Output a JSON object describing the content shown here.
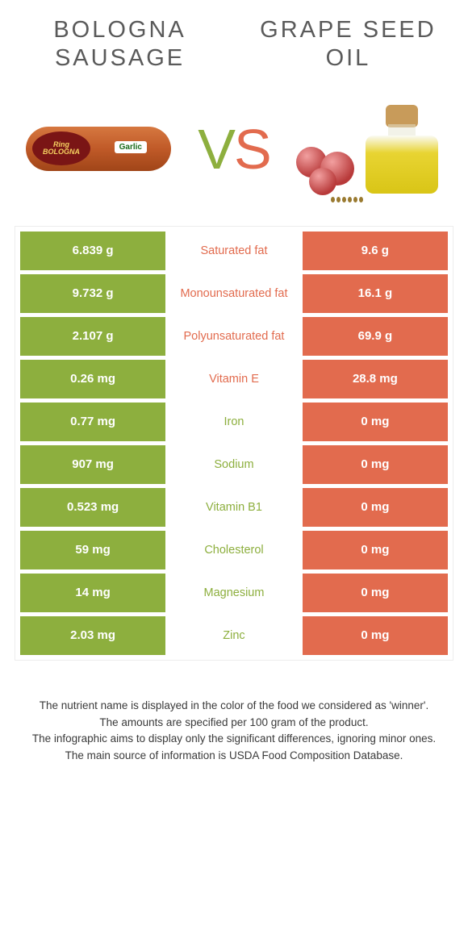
{
  "titles": {
    "left": "BOLOGNA SAUSAGE",
    "right": "GRAPE SEED OIL"
  },
  "vs": {
    "v": "V",
    "s": "S"
  },
  "colors": {
    "left": "#8daf3e",
    "right": "#e26b4e",
    "title_text": "#5a5a5a",
    "cell_text": "#ffffff"
  },
  "table": {
    "rows": [
      {
        "left": "6.839 g",
        "label": "Saturated fat",
        "right": "9.6 g",
        "winner": "right"
      },
      {
        "left": "9.732 g",
        "label": "Monounsaturated fat",
        "right": "16.1 g",
        "winner": "right"
      },
      {
        "left": "2.107 g",
        "label": "Polyunsaturated fat",
        "right": "69.9 g",
        "winner": "right"
      },
      {
        "left": "0.26 mg",
        "label": "Vitamin E",
        "right": "28.8 mg",
        "winner": "right"
      },
      {
        "left": "0.77 mg",
        "label": "Iron",
        "right": "0 mg",
        "winner": "left"
      },
      {
        "left": "907 mg",
        "label": "Sodium",
        "right": "0 mg",
        "winner": "left"
      },
      {
        "left": "0.523 mg",
        "label": "Vitamin B1",
        "right": "0 mg",
        "winner": "left"
      },
      {
        "left": "59 mg",
        "label": "Cholesterol",
        "right": "0 mg",
        "winner": "left"
      },
      {
        "left": "14 mg",
        "label": "Magnesium",
        "right": "0 mg",
        "winner": "left"
      },
      {
        "left": "2.03 mg",
        "label": "Zinc",
        "right": "0 mg",
        "winner": "left"
      }
    ]
  },
  "footer": {
    "line1": "The nutrient name is displayed in the color of the food we considered as 'winner'.",
    "line2": "The amounts are specified per 100 gram of the product.",
    "line3": "The infographic aims to display only the significant differences, ignoring minor ones.",
    "line4": "The main source of information is USDA Food Composition Database."
  }
}
